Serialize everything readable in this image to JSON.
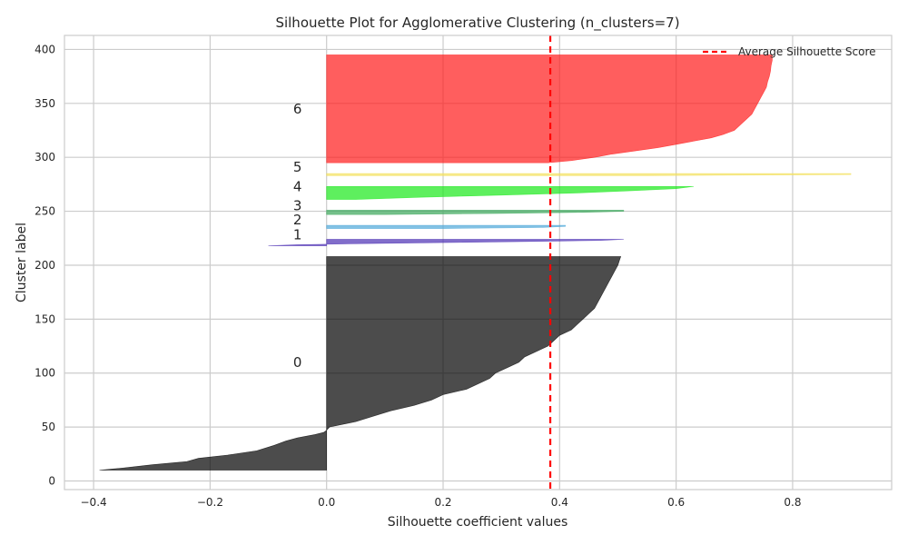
{
  "chart_data": {
    "type": "silhouette",
    "title": "Silhouette Plot for Agglomerative Clustering (n_clusters=7)",
    "xlabel": "Silhouette coefficient values",
    "ylabel": "Cluster label",
    "xlim": [
      -0.45,
      0.97
    ],
    "ylim": [
      -8,
      413
    ],
    "xticks": [
      -0.4,
      -0.2,
      0.0,
      0.2,
      0.4,
      0.6,
      0.8
    ],
    "xtick_labels": [
      "−0.4",
      "−0.2",
      "0.0",
      "0.2",
      "0.4",
      "0.6",
      "0.8"
    ],
    "yticks": [
      0,
      50,
      100,
      150,
      200,
      250,
      300,
      350,
      400
    ],
    "ytick_labels": [
      "0",
      "50",
      "100",
      "150",
      "200",
      "250",
      "300",
      "350",
      "400"
    ],
    "grid": true,
    "legend_position": "top-right",
    "average_silhouette_score": 0.384,
    "average_line_label": "Average Silhouette Score",
    "average_line_color": "#ff0000",
    "clusters": [
      {
        "label": "0",
        "y_lower": 10,
        "y_upper": 208,
        "color": "#000000",
        "label_y": 110,
        "profile": [
          [
            10,
            -0.39
          ],
          [
            12,
            -0.35
          ],
          [
            15,
            -0.3
          ],
          [
            18,
            -0.24
          ],
          [
            21,
            -0.22
          ],
          [
            24,
            -0.17
          ],
          [
            28,
            -0.12
          ],
          [
            33,
            -0.09
          ],
          [
            37,
            -0.07
          ],
          [
            40,
            -0.05
          ],
          [
            43,
            -0.02
          ],
          [
            45,
            -0.005
          ],
          [
            47,
            0.0
          ],
          [
            50,
            0.005
          ],
          [
            55,
            0.05
          ],
          [
            60,
            0.08
          ],
          [
            65,
            0.11
          ],
          [
            70,
            0.15
          ],
          [
            75,
            0.18
          ],
          [
            80,
            0.2
          ],
          [
            85,
            0.24
          ],
          [
            90,
            0.26
          ],
          [
            95,
            0.28
          ],
          [
            100,
            0.29
          ],
          [
            105,
            0.31
          ],
          [
            110,
            0.33
          ],
          [
            115,
            0.34
          ],
          [
            120,
            0.36
          ],
          [
            125,
            0.38
          ],
          [
            130,
            0.39
          ],
          [
            135,
            0.4
          ],
          [
            140,
            0.42
          ],
          [
            145,
            0.43
          ],
          [
            150,
            0.44
          ],
          [
            155,
            0.45
          ],
          [
            160,
            0.46
          ],
          [
            165,
            0.465
          ],
          [
            170,
            0.47
          ],
          [
            175,
            0.475
          ],
          [
            180,
            0.48
          ],
          [
            185,
            0.485
          ],
          [
            190,
            0.49
          ],
          [
            195,
            0.495
          ],
          [
            200,
            0.5
          ],
          [
            205,
            0.503
          ],
          [
            208,
            0.505
          ]
        ]
      },
      {
        "label": "1",
        "y_lower": 218,
        "y_upper": 224,
        "color": "#4b2fb4",
        "label_y": 228,
        "profile": [
          [
            218,
            -0.1
          ],
          [
            219,
            -0.05
          ],
          [
            220,
            0.06
          ],
          [
            221,
            0.2
          ],
          [
            222,
            0.35
          ],
          [
            223,
            0.47
          ],
          [
            224,
            0.51
          ]
        ]
      },
      {
        "label": "2",
        "y_lower": 234,
        "y_upper": 237,
        "color": "#4ea8d8",
        "label_y": 242,
        "profile": [
          [
            234,
            0.2
          ],
          [
            235,
            0.37
          ],
          [
            236,
            0.41
          ],
          [
            237,
            0.41
          ]
        ]
      },
      {
        "label": "3",
        "y_lower": 247,
        "y_upper": 251,
        "color": "#3aa65a",
        "label_y": 255,
        "profile": [
          [
            247,
            0.1
          ],
          [
            248,
            0.3
          ],
          [
            249,
            0.44
          ],
          [
            250,
            0.51
          ],
          [
            251,
            0.51
          ]
        ]
      },
      {
        "label": "4",
        "y_lower": 261,
        "y_upper": 273,
        "color": "#1ae81a",
        "label_y": 273,
        "profile": [
          [
            261,
            0.05
          ],
          [
            263,
            0.16
          ],
          [
            265,
            0.3
          ],
          [
            267,
            0.43
          ],
          [
            269,
            0.52
          ],
          [
            271,
            0.6
          ],
          [
            273,
            0.63
          ]
        ]
      },
      {
        "label": "5",
        "y_lower": 283,
        "y_upper": 285,
        "color": "#f2e05c",
        "label_y": 291,
        "profile": [
          [
            283,
            0.55
          ],
          [
            284,
            0.9
          ],
          [
            285,
            0.9
          ]
        ]
      },
      {
        "label": "6",
        "y_lower": 295,
        "y_upper": 395,
        "color": "#ff1a1a",
        "label_y": 345,
        "profile": [
          [
            295,
            0.38
          ],
          [
            297,
            0.42
          ],
          [
            300,
            0.46
          ],
          [
            303,
            0.49
          ],
          [
            306,
            0.53
          ],
          [
            309,
            0.57
          ],
          [
            312,
            0.6
          ],
          [
            315,
            0.63
          ],
          [
            318,
            0.66
          ],
          [
            321,
            0.68
          ],
          [
            325,
            0.7
          ],
          [
            330,
            0.71
          ],
          [
            335,
            0.72
          ],
          [
            340,
            0.73
          ],
          [
            345,
            0.735
          ],
          [
            350,
            0.74
          ],
          [
            355,
            0.745
          ],
          [
            360,
            0.75
          ],
          [
            365,
            0.755
          ],
          [
            370,
            0.757
          ],
          [
            375,
            0.76
          ],
          [
            380,
            0.762
          ],
          [
            385,
            0.763
          ],
          [
            390,
            0.765
          ],
          [
            395,
            0.765
          ]
        ]
      }
    ]
  }
}
